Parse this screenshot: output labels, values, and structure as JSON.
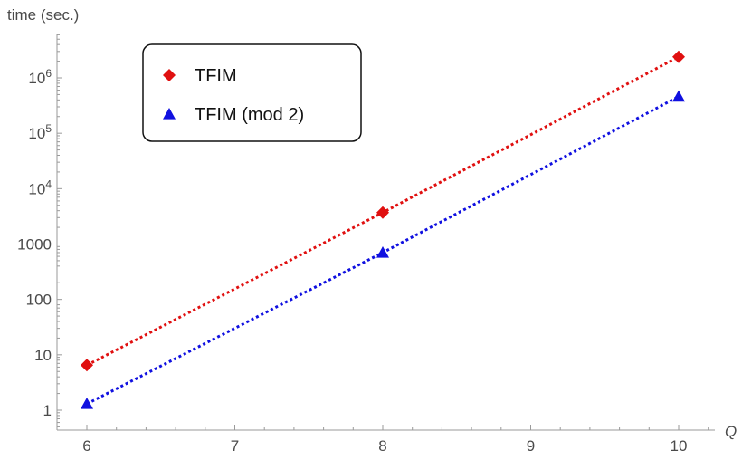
{
  "chart_data": {
    "type": "scatter",
    "xlabel": "Q",
    "ylabel": "time (sec.)",
    "y_scale": "log",
    "xlim": [
      5.8,
      10.2
    ],
    "ylim": [
      0.5,
      10000000
    ],
    "x_ticks": [
      6,
      7,
      8,
      9,
      10
    ],
    "y_ticks": [
      {
        "value": 1,
        "label": "1"
      },
      {
        "value": 10,
        "label": "10"
      },
      {
        "value": 100,
        "label": "100"
      },
      {
        "value": 1000,
        "label": "1000"
      },
      {
        "value": 10000,
        "label": "10",
        "exponent": "4"
      },
      {
        "value": 100000,
        "label": "10",
        "exponent": "5"
      },
      {
        "value": 1000000,
        "label": "10",
        "exponent": "6"
      }
    ],
    "grid": false,
    "legend_position": "top-left",
    "series": [
      {
        "name": "TFIM",
        "color": "#e01010",
        "marker": "diamond",
        "fit_line": "dotted",
        "x": [
          6,
          8,
          10
        ],
        "y": [
          6.5,
          3700,
          2400000
        ]
      },
      {
        "name": "TFIM (mod 2)",
        "color": "#1010e0",
        "marker": "triangle",
        "fit_line": "dotted",
        "x": [
          6,
          8,
          10
        ],
        "y": [
          1.3,
          700,
          460000
        ]
      }
    ]
  }
}
